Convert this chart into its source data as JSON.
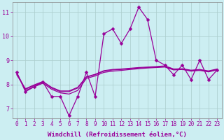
{
  "xlabel": "Windchill (Refroidissement éolien,°C)",
  "bg_color": "#cceef2",
  "line_color": "#990099",
  "grid_color": "#aacccc",
  "xlim": [
    -0.5,
    23.5
  ],
  "ylim": [
    6.6,
    11.4
  ],
  "xticks": [
    0,
    1,
    2,
    3,
    4,
    5,
    6,
    7,
    8,
    9,
    10,
    11,
    12,
    13,
    14,
    15,
    16,
    17,
    18,
    19,
    20,
    21,
    22,
    23
  ],
  "yticks": [
    7,
    8,
    9,
    10,
    11
  ],
  "series_main": [
    8.5,
    7.7,
    7.9,
    8.1,
    7.5,
    7.5,
    6.7,
    7.5,
    8.5,
    7.5,
    10.1,
    10.3,
    9.7,
    10.3,
    11.2,
    10.7,
    9.0,
    8.8,
    8.4,
    8.8,
    8.2,
    9.0,
    8.2,
    8.6
  ],
  "series_smooth": [
    [
      8.5,
      7.75,
      7.9,
      8.05,
      7.8,
      7.65,
      7.6,
      7.75,
      8.25,
      8.35,
      8.5,
      8.55,
      8.58,
      8.62,
      8.65,
      8.68,
      8.7,
      8.72,
      8.6,
      8.62,
      8.55,
      8.58,
      8.52,
      8.6
    ],
    [
      8.45,
      7.8,
      7.95,
      8.1,
      7.85,
      7.7,
      7.7,
      7.85,
      8.3,
      8.4,
      8.55,
      8.6,
      8.62,
      8.65,
      8.68,
      8.7,
      8.72,
      8.75,
      8.62,
      8.63,
      8.57,
      8.6,
      8.54,
      8.62
    ],
    [
      8.4,
      7.82,
      7.98,
      8.12,
      7.88,
      7.73,
      7.73,
      7.88,
      8.32,
      8.42,
      8.57,
      8.62,
      8.64,
      8.67,
      8.7,
      8.72,
      8.74,
      8.77,
      8.64,
      8.65,
      8.59,
      8.62,
      8.56,
      8.64
    ]
  ],
  "marker_size": 2.5,
  "line_width": 0.9,
  "tick_fontsize": 5.5,
  "xlabel_fontsize": 6.5
}
